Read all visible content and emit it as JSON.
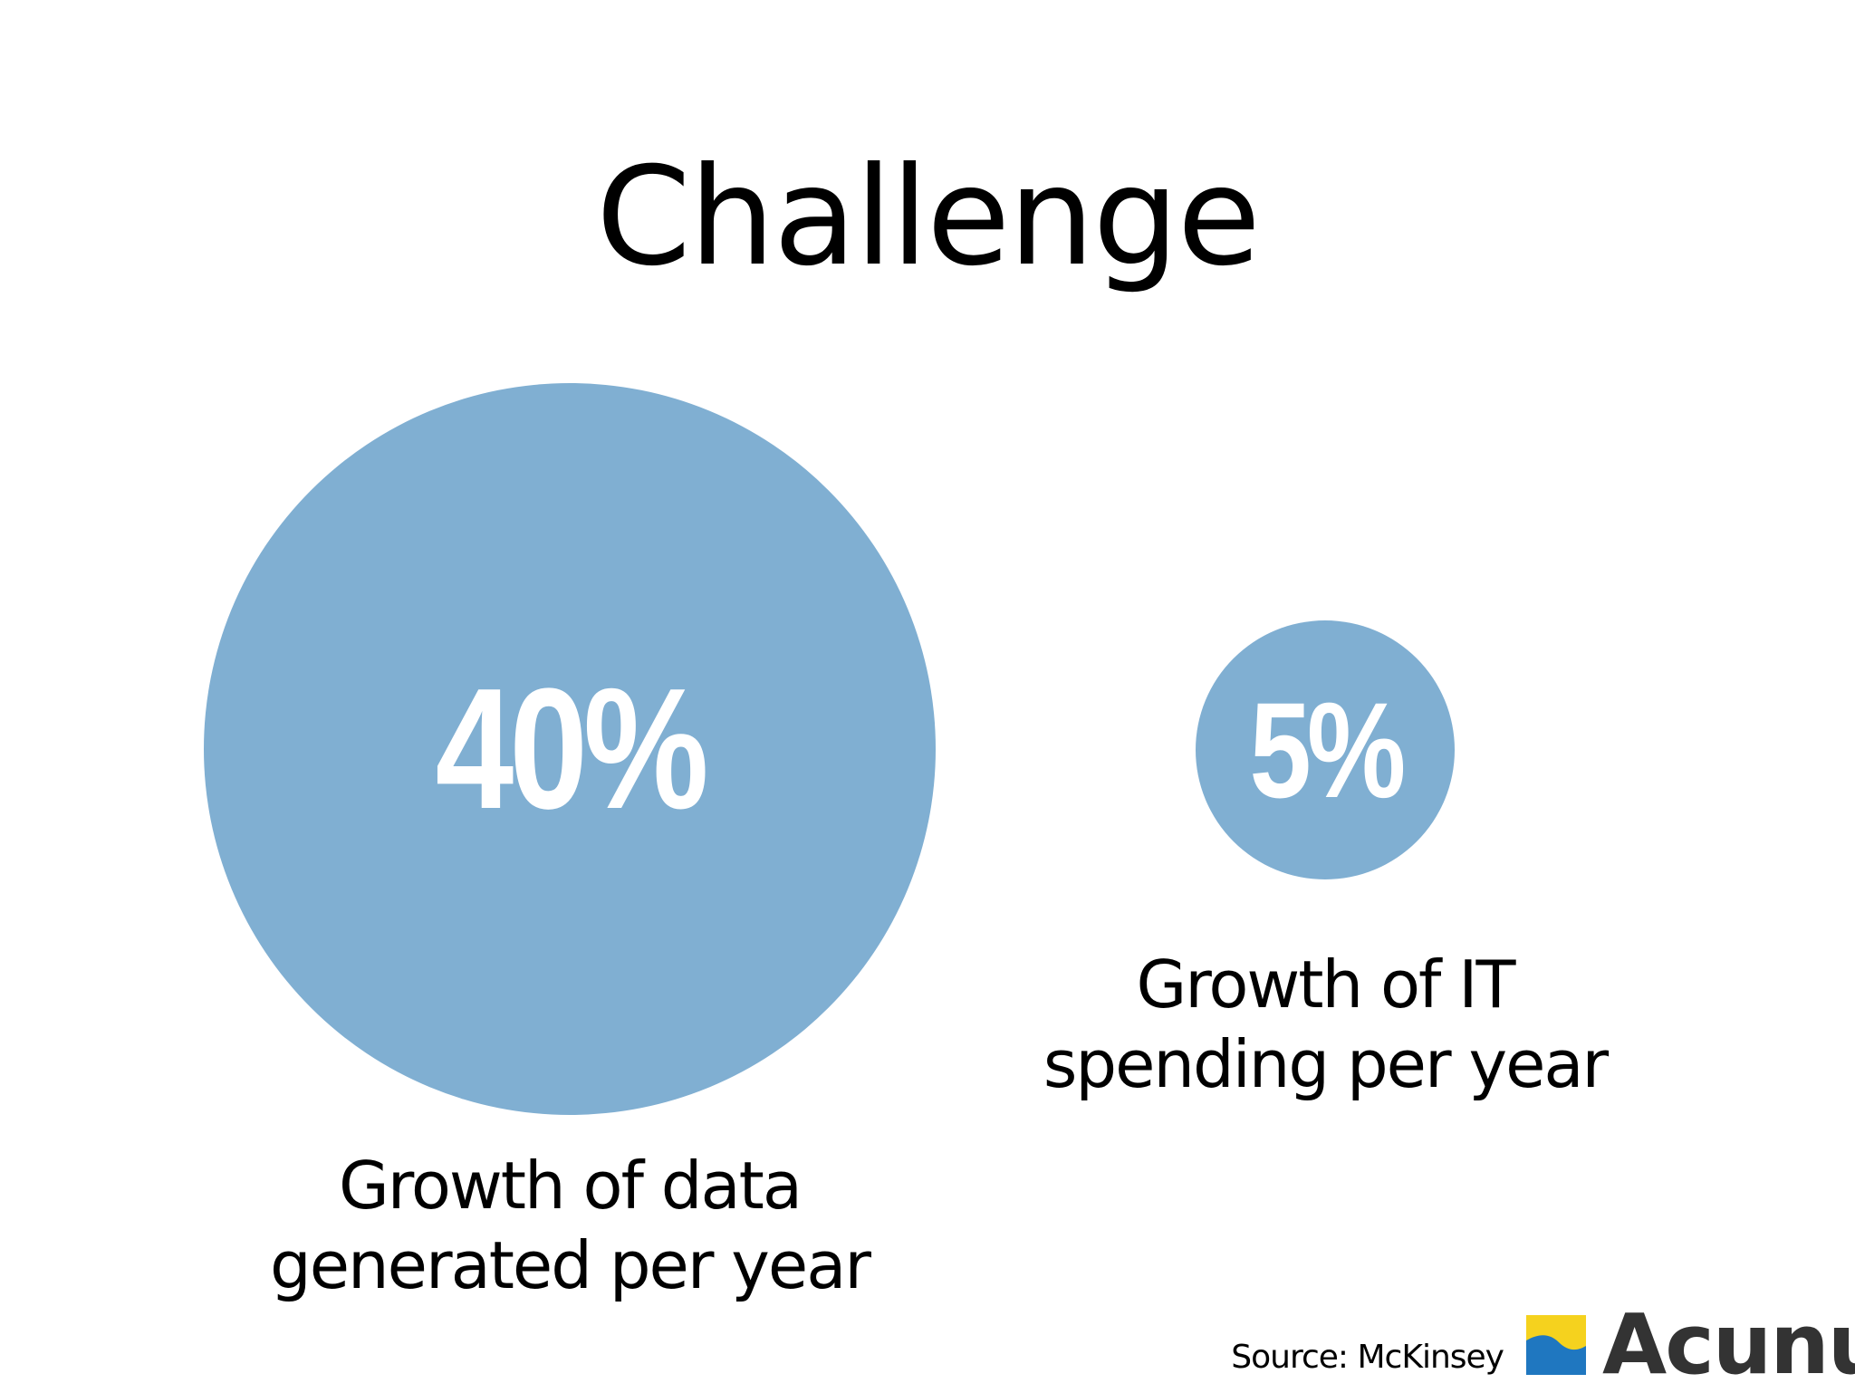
{
  "slide": {
    "title": "Challenge",
    "stats": [
      {
        "value_label": "40%",
        "value": 40,
        "caption_lines": [
          "Growth of data",
          "generated per year"
        ]
      },
      {
        "value_label": "5%",
        "value": 5,
        "caption_lines": [
          "Growth of IT",
          "spending per year"
        ]
      }
    ],
    "source": "Source: McKinsey",
    "logo": {
      "wordmark": "Acunu",
      "icon": "acunu-wave-logo-icon"
    },
    "colors": {
      "circle_fill": "#80afd2",
      "logo_yellow": "#f5d21e",
      "logo_blue": "#1f77c0",
      "logo_text": "#333333",
      "text": "#000000",
      "background": "#ffffff"
    }
  }
}
